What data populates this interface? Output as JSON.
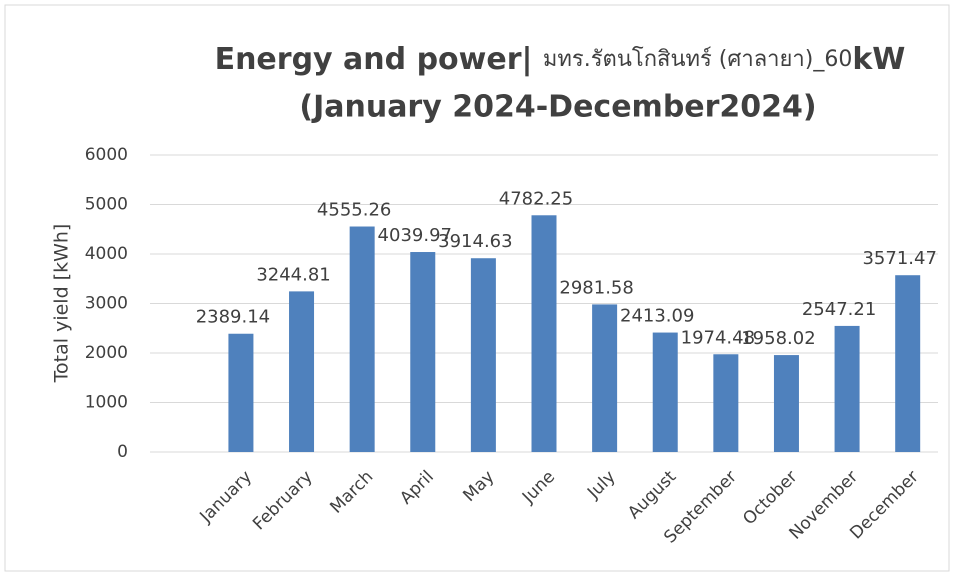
{
  "chart_data": {
    "type": "bar",
    "title_parts": [
      "Energy and power| ",
      "มทร.รัตนโกสินทร์ (ศาลายา)_60",
      "kW"
    ],
    "subtitle": "(January 2024-December2024)",
    "y_label": "Total yield [kWh]",
    "categories": [
      null,
      "January",
      "February",
      "March",
      "April",
      "May",
      "June",
      "July",
      "August",
      "September",
      "October",
      "November",
      "December"
    ],
    "values": [
      null,
      2389.14,
      3244.81,
      4555.26,
      4039.97,
      3914.63,
      4782.25,
      2981.58,
      2413.09,
      1974.48,
      1958.02,
      2547.21,
      3571.47
    ],
    "color": "#4f81bd",
    "ylim": [
      0,
      6000
    ],
    "yticks": [
      0,
      1000,
      2000,
      3000,
      4000,
      5000,
      6000
    ],
    "grid": true
  }
}
